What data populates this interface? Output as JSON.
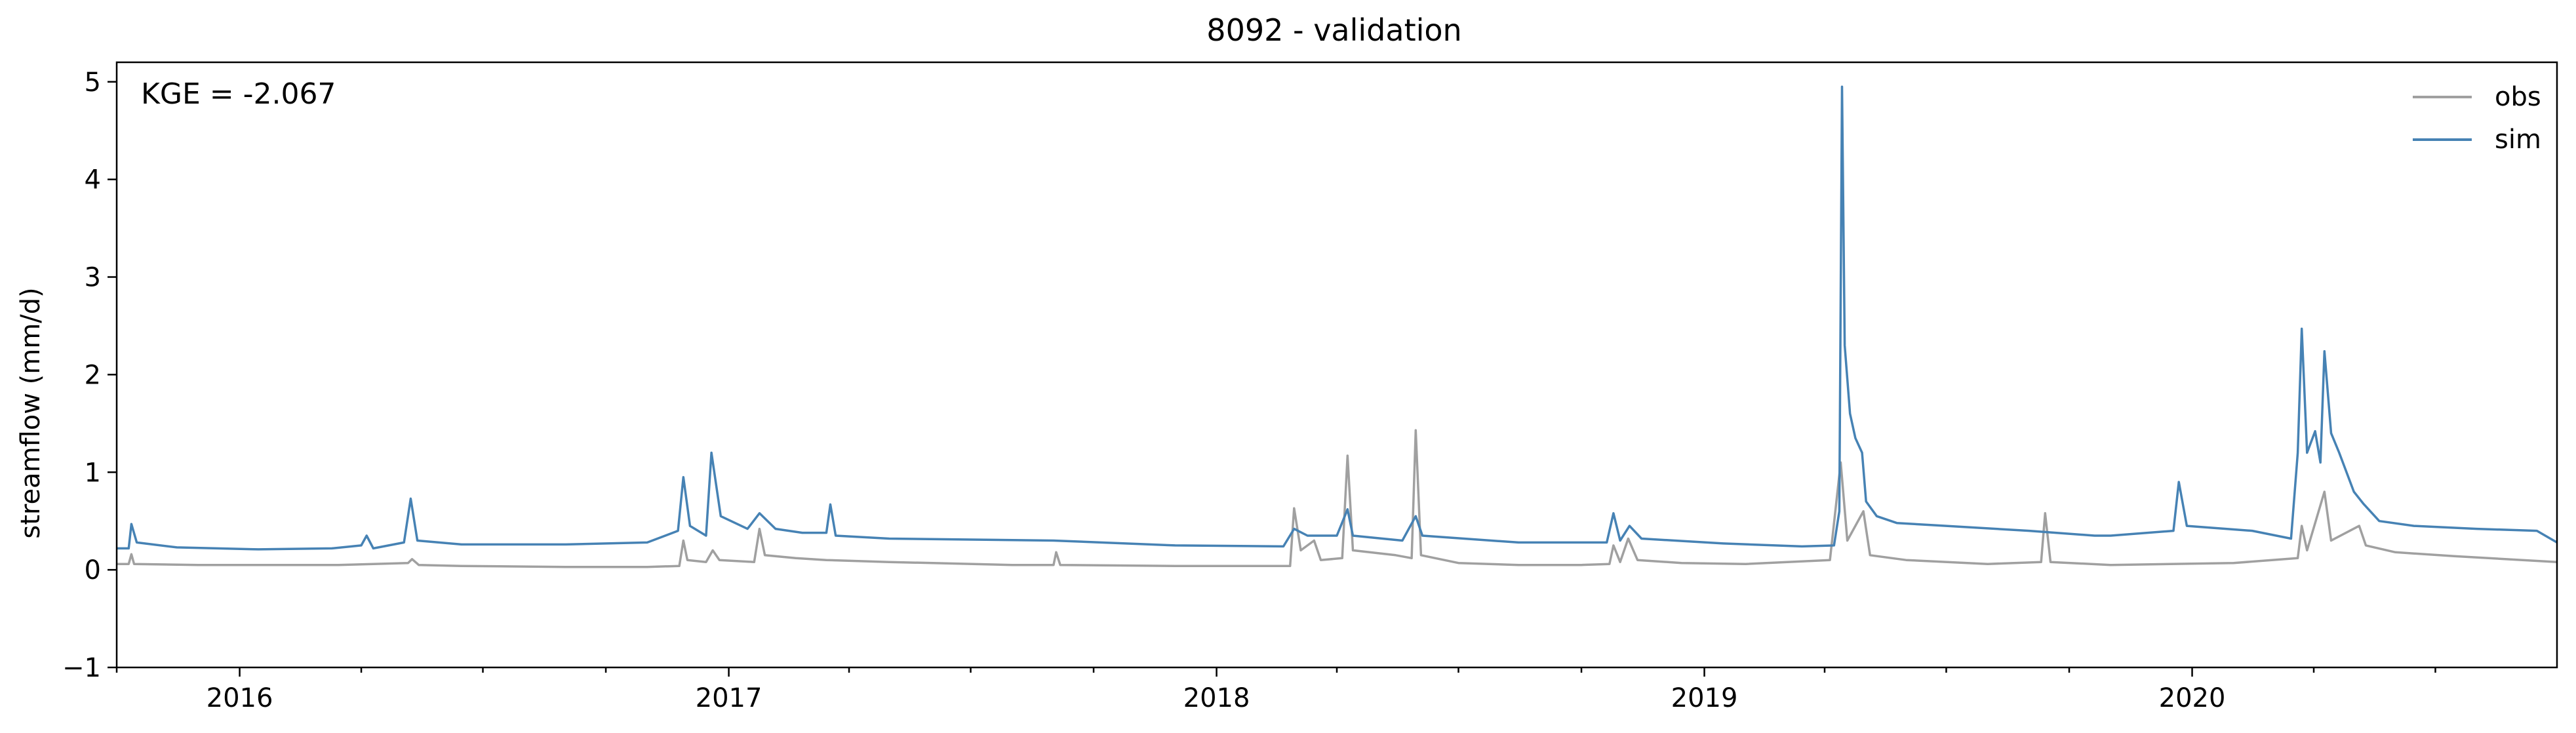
{
  "chart_data": {
    "type": "line",
    "title": "8092 - validation",
    "ylabel": "streamflow (mm/d)",
    "xlabel": "",
    "annotation": "KGE = -2.067",
    "xlim": [
      "2015-10-01",
      "2020-09-30"
    ],
    "ylim": [
      -1,
      5.2
    ],
    "yticks": [
      -1,
      0,
      1,
      2,
      3,
      4,
      5
    ],
    "ytick_labels": [
      "−1",
      "0",
      "1",
      "2",
      "3",
      "4",
      "5"
    ],
    "xticks": [
      "2016-01-01",
      "2017-01-01",
      "2018-01-01",
      "2019-01-01",
      "2020-01-01"
    ],
    "xtick_labels": [
      "2016",
      "2017",
      "2018",
      "2019",
      "2020"
    ],
    "grid": false,
    "legend_position": "top-right",
    "series": [
      {
        "name": "obs",
        "color": "#a0a0a0",
        "points": [
          [
            "2015-10-01",
            0.06
          ],
          [
            "2015-10-10",
            0.06
          ],
          [
            "2015-10-12",
            0.16
          ],
          [
            "2015-10-14",
            0.06
          ],
          [
            "2015-12-01",
            0.05
          ],
          [
            "2016-02-01",
            0.05
          ],
          [
            "2016-03-15",
            0.05
          ],
          [
            "2016-04-10",
            0.06
          ],
          [
            "2016-05-06",
            0.07
          ],
          [
            "2016-05-09",
            0.11
          ],
          [
            "2016-05-14",
            0.05
          ],
          [
            "2016-06-15",
            0.04
          ],
          [
            "2016-09-01",
            0.03
          ],
          [
            "2016-11-01",
            0.03
          ],
          [
            "2016-11-25",
            0.04
          ],
          [
            "2016-11-28",
            0.3
          ],
          [
            "2016-12-01",
            0.1
          ],
          [
            "2016-12-15",
            0.08
          ],
          [
            "2016-12-20",
            0.2
          ],
          [
            "2016-12-25",
            0.1
          ],
          [
            "2017-01-20",
            0.08
          ],
          [
            "2017-01-24",
            0.42
          ],
          [
            "2017-01-28",
            0.15
          ],
          [
            "2017-02-20",
            0.12
          ],
          [
            "2017-03-15",
            0.1
          ],
          [
            "2017-05-01",
            0.08
          ],
          [
            "2017-08-01",
            0.05
          ],
          [
            "2017-09-01",
            0.05
          ],
          [
            "2017-09-03",
            0.18
          ],
          [
            "2017-09-06",
            0.05
          ],
          [
            "2017-12-01",
            0.04
          ],
          [
            "2018-02-25",
            0.04
          ],
          [
            "2018-02-28",
            0.63
          ],
          [
            "2018-03-05",
            0.2
          ],
          [
            "2018-03-15",
            0.3
          ],
          [
            "2018-03-20",
            0.1
          ],
          [
            "2018-04-05",
            0.12
          ],
          [
            "2018-04-09",
            1.17
          ],
          [
            "2018-04-13",
            0.2
          ],
          [
            "2018-05-15",
            0.15
          ],
          [
            "2018-05-27",
            0.12
          ],
          [
            "2018-05-30",
            1.43
          ],
          [
            "2018-06-03",
            0.15
          ],
          [
            "2018-07-01",
            0.07
          ],
          [
            "2018-08-15",
            0.05
          ],
          [
            "2018-10-01",
            0.05
          ],
          [
            "2018-10-22",
            0.06
          ],
          [
            "2018-10-25",
            0.25
          ],
          [
            "2018-10-30",
            0.08
          ],
          [
            "2018-11-05",
            0.32
          ],
          [
            "2018-11-12",
            0.1
          ],
          [
            "2018-12-15",
            0.07
          ],
          [
            "2019-02-01",
            0.06
          ],
          [
            "2019-04-05",
            0.1
          ],
          [
            "2019-04-13",
            1.1
          ],
          [
            "2019-04-18",
            0.3
          ],
          [
            "2019-04-30",
            0.6
          ],
          [
            "2019-05-05",
            0.15
          ],
          [
            "2019-06-01",
            0.1
          ],
          [
            "2019-08-01",
            0.06
          ],
          [
            "2019-09-10",
            0.08
          ],
          [
            "2019-09-13",
            0.58
          ],
          [
            "2019-09-17",
            0.08
          ],
          [
            "2019-11-01",
            0.05
          ],
          [
            "2020-02-01",
            0.07
          ],
          [
            "2020-03-20",
            0.12
          ],
          [
            "2020-03-23",
            0.45
          ],
          [
            "2020-03-27",
            0.2
          ],
          [
            "2020-04-09",
            0.8
          ],
          [
            "2020-04-14",
            0.3
          ],
          [
            "2020-05-05",
            0.45
          ],
          [
            "2020-05-10",
            0.25
          ],
          [
            "2020-06-01",
            0.18
          ],
          [
            "2020-07-15",
            0.14
          ],
          [
            "2020-09-30",
            0.08
          ]
        ]
      },
      {
        "name": "sim",
        "color": "#4682b4",
        "points": [
          [
            "2015-10-01",
            0.22
          ],
          [
            "2015-10-10",
            0.22
          ],
          [
            "2015-10-12",
            0.47
          ],
          [
            "2015-10-16",
            0.28
          ],
          [
            "2015-11-15",
            0.23
          ],
          [
            "2016-01-15",
            0.21
          ],
          [
            "2016-03-10",
            0.22
          ],
          [
            "2016-04-01",
            0.25
          ],
          [
            "2016-04-05",
            0.35
          ],
          [
            "2016-04-10",
            0.22
          ],
          [
            "2016-05-03",
            0.28
          ],
          [
            "2016-05-08",
            0.73
          ],
          [
            "2016-05-13",
            0.3
          ],
          [
            "2016-06-15",
            0.26
          ],
          [
            "2016-09-01",
            0.26
          ],
          [
            "2016-11-01",
            0.28
          ],
          [
            "2016-11-24",
            0.4
          ],
          [
            "2016-11-28",
            0.95
          ],
          [
            "2016-12-03",
            0.45
          ],
          [
            "2016-12-15",
            0.35
          ],
          [
            "2016-12-19",
            1.2
          ],
          [
            "2016-12-26",
            0.55
          ],
          [
            "2017-01-15",
            0.42
          ],
          [
            "2017-01-24",
            0.58
          ],
          [
            "2017-02-05",
            0.42
          ],
          [
            "2017-02-25",
            0.38
          ],
          [
            "2017-03-15",
            0.38
          ],
          [
            "2017-03-18",
            0.67
          ],
          [
            "2017-03-22",
            0.35
          ],
          [
            "2017-05-01",
            0.32
          ],
          [
            "2017-09-01",
            0.3
          ],
          [
            "2017-12-01",
            0.25
          ],
          [
            "2018-02-20",
            0.24
          ],
          [
            "2018-02-28",
            0.42
          ],
          [
            "2018-03-10",
            0.35
          ],
          [
            "2018-04-01",
            0.35
          ],
          [
            "2018-04-09",
            0.62
          ],
          [
            "2018-04-13",
            0.35
          ],
          [
            "2018-05-20",
            0.3
          ],
          [
            "2018-05-30",
            0.55
          ],
          [
            "2018-06-04",
            0.35
          ],
          [
            "2018-08-15",
            0.28
          ],
          [
            "2018-10-20",
            0.28
          ],
          [
            "2018-10-25",
            0.58
          ],
          [
            "2018-10-30",
            0.3
          ],
          [
            "2018-11-06",
            0.45
          ],
          [
            "2018-11-15",
            0.32
          ],
          [
            "2019-01-15",
            0.27
          ],
          [
            "2019-03-15",
            0.24
          ],
          [
            "2019-04-08",
            0.25
          ],
          [
            "2019-04-12",
            0.6
          ],
          [
            "2019-04-14",
            4.95
          ],
          [
            "2019-04-16",
            2.3
          ],
          [
            "2019-04-20",
            1.6
          ],
          [
            "2019-04-24",
            1.35
          ],
          [
            "2019-04-29",
            1.2
          ],
          [
            "2019-05-02",
            0.7
          ],
          [
            "2019-05-10",
            0.55
          ],
          [
            "2019-05-25",
            0.48
          ],
          [
            "2019-07-01",
            0.45
          ],
          [
            "2019-09-01",
            0.4
          ],
          [
            "2019-10-20",
            0.35
          ],
          [
            "2019-11-01",
            0.35
          ],
          [
            "2019-12-18",
            0.4
          ],
          [
            "2019-12-22",
            0.9
          ],
          [
            "2019-12-28",
            0.45
          ],
          [
            "2020-02-15",
            0.4
          ],
          [
            "2020-03-15",
            0.32
          ],
          [
            "2020-03-20",
            1.2
          ],
          [
            "2020-03-23",
            2.47
          ],
          [
            "2020-03-27",
            1.2
          ],
          [
            "2020-04-02",
            1.42
          ],
          [
            "2020-04-06",
            1.1
          ],
          [
            "2020-04-09",
            2.24
          ],
          [
            "2020-04-14",
            1.4
          ],
          [
            "2020-04-20",
            1.2
          ],
          [
            "2020-05-01",
            0.8
          ],
          [
            "2020-05-08",
            0.68
          ],
          [
            "2020-05-20",
            0.5
          ],
          [
            "2020-06-15",
            0.45
          ],
          [
            "2020-08-01",
            0.42
          ],
          [
            "2020-09-15",
            0.4
          ],
          [
            "2020-09-30",
            0.28
          ]
        ]
      }
    ]
  }
}
